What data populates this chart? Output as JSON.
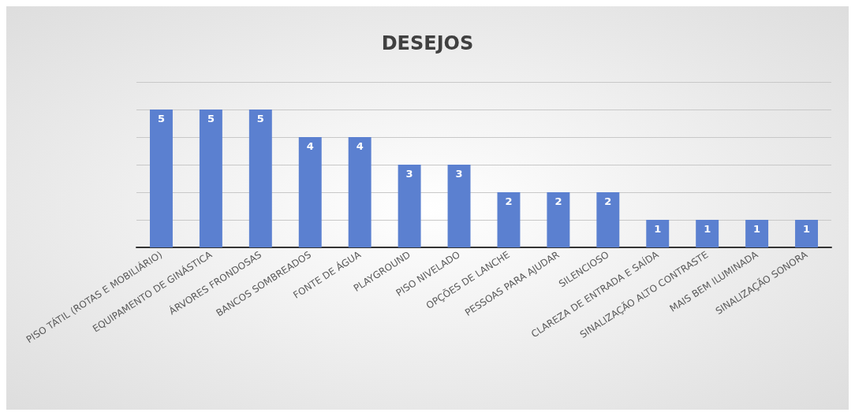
{
  "chart_data": {
    "type": "bar",
    "title": "DESEJOS",
    "categories": [
      "PISO TÁTIL (ROTAS E MOBILIÁRIO)",
      "EQUIPAMENTO DE GINÁSTICA",
      "ÁRVORES FRONDOSAS",
      "BANCOS SOMBREADOS",
      "FONTE DE ÁGUA",
      "PLAYGROUND",
      "PISO NIVELADO",
      "OPÇÕES DE LANCHE",
      "PESSOAS PARA AJUDAR",
      "SILENCIOSO",
      "CLAREZA DE ENTRADA E SAÍDA",
      "SINALIZAÇÃO ALTO CONTRASTE",
      "MAIS BEM ILUMINADA",
      "SINALIZAÇÃO SONORA"
    ],
    "values": [
      5,
      5,
      5,
      4,
      4,
      3,
      3,
      2,
      2,
      2,
      1,
      1,
      1,
      1
    ],
    "color": "#5b80d0",
    "ylim": [
      0,
      6
    ],
    "yticks": [
      {
        "value": 0,
        "label": null
      },
      {
        "value": 1,
        "label": null
      },
      {
        "value": 2,
        "label": null
      },
      {
        "value": 3,
        "label": null
      },
      {
        "value": 4,
        "label": null
      },
      {
        "value": 5,
        "label": null
      },
      {
        "value": 6,
        "label": null
      }
    ],
    "grid": "y",
    "tick_labels": "x",
    "data_labels": true
  }
}
